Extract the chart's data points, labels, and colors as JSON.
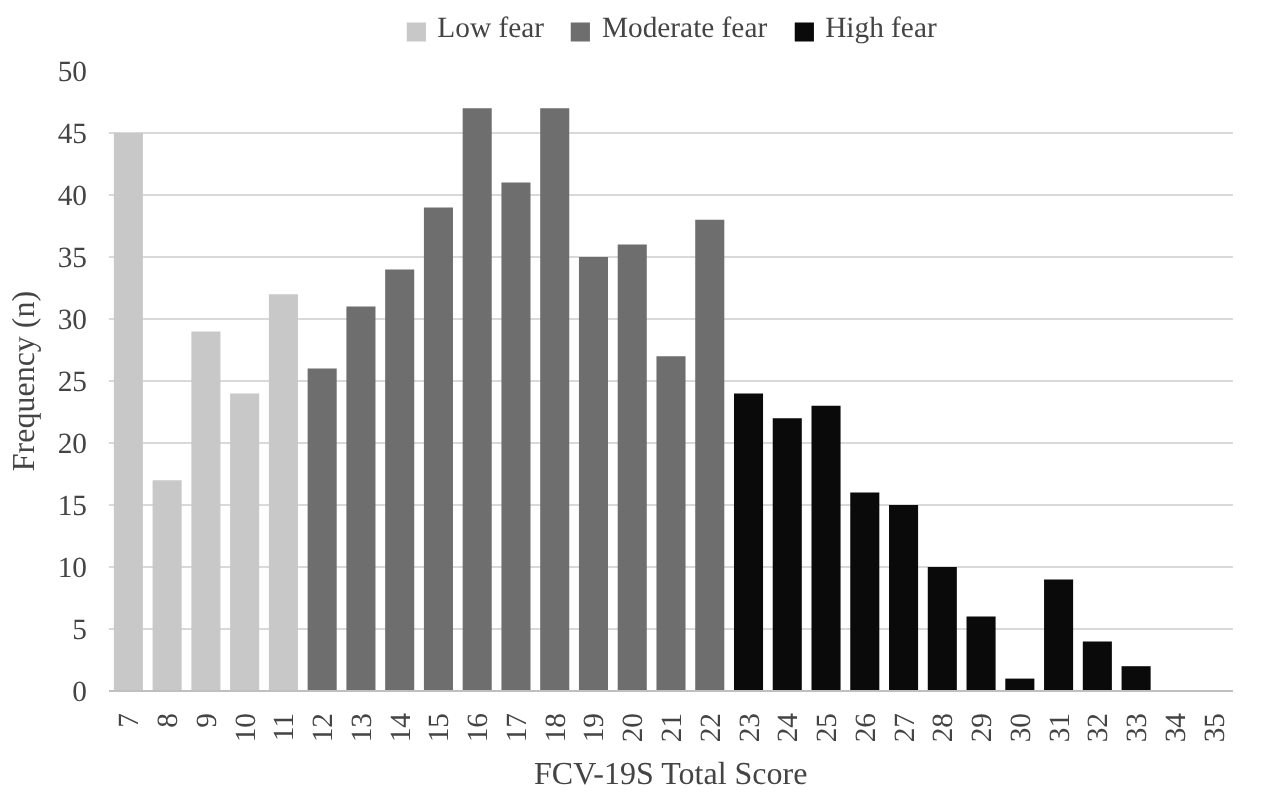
{
  "chart_data": {
    "type": "bar",
    "xlabel": "FCV-19S Total Score",
    "ylabel": "Frequency (n)",
    "categories": [
      "7",
      "8",
      "9",
      "10",
      "11",
      "12",
      "13",
      "14",
      "15",
      "16",
      "17",
      "18",
      "19",
      "20",
      "21",
      "22",
      "23",
      "24",
      "25",
      "26",
      "27",
      "28",
      "29",
      "30",
      "31",
      "32",
      "33",
      "34",
      "35"
    ],
    "series": [
      {
        "name": "Low fear",
        "color": "#c8c8c8",
        "values": [
          45,
          17,
          29,
          24,
          32,
          null,
          null,
          null,
          null,
          null,
          null,
          null,
          null,
          null,
          null,
          null,
          null,
          null,
          null,
          null,
          null,
          null,
          null,
          null,
          null,
          null,
          null,
          null,
          null
        ]
      },
      {
        "name": "Moderate fear",
        "color": "#6e6e6e",
        "values": [
          null,
          null,
          null,
          null,
          null,
          26,
          31,
          34,
          39,
          47,
          41,
          47,
          35,
          36,
          27,
          38,
          null,
          null,
          null,
          null,
          null,
          null,
          null,
          null,
          null,
          null,
          null,
          null,
          null
        ]
      },
      {
        "name": "High fear",
        "color": "#0a0a0a",
        "values": [
          null,
          null,
          null,
          null,
          null,
          null,
          null,
          null,
          null,
          null,
          null,
          null,
          null,
          null,
          null,
          null,
          24,
          22,
          23,
          16,
          15,
          10,
          6,
          1,
          9,
          4,
          2,
          0,
          0
        ]
      }
    ],
    "ylim": [
      0,
      50
    ],
    "yticks": [
      0,
      5,
      10,
      15,
      20,
      25,
      30,
      35,
      40,
      45,
      50
    ],
    "grid": "y",
    "legend": "top"
  }
}
